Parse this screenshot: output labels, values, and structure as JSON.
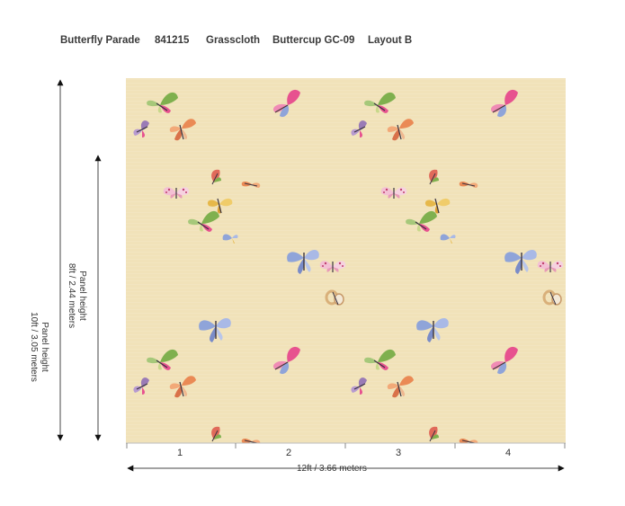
{
  "header": {
    "pattern_name": "Butterfly Parade",
    "sku": "841215",
    "material": "Grasscloth",
    "colorway": "Buttercup GC-09",
    "layout": "Layout B"
  },
  "dimensions": {
    "outer_height_line1": "Panel height",
    "outer_height_line2": "10ft / 3.05 meters",
    "inner_height_line1": "Panel height",
    "inner_height_line2": "8ft / 2.44 meters",
    "width": "12ft  / 3.66 meters",
    "panel_numbers": [
      "1",
      "2",
      "3",
      "4"
    ]
  },
  "colors": {
    "background": "#f1e2b9",
    "pink": "#e7528f",
    "blue": "#8fa4d9",
    "green": "#7fb04e",
    "orange": "#ea8a55",
    "purple": "#9a7bb6",
    "yellow": "#e6b84a"
  }
}
